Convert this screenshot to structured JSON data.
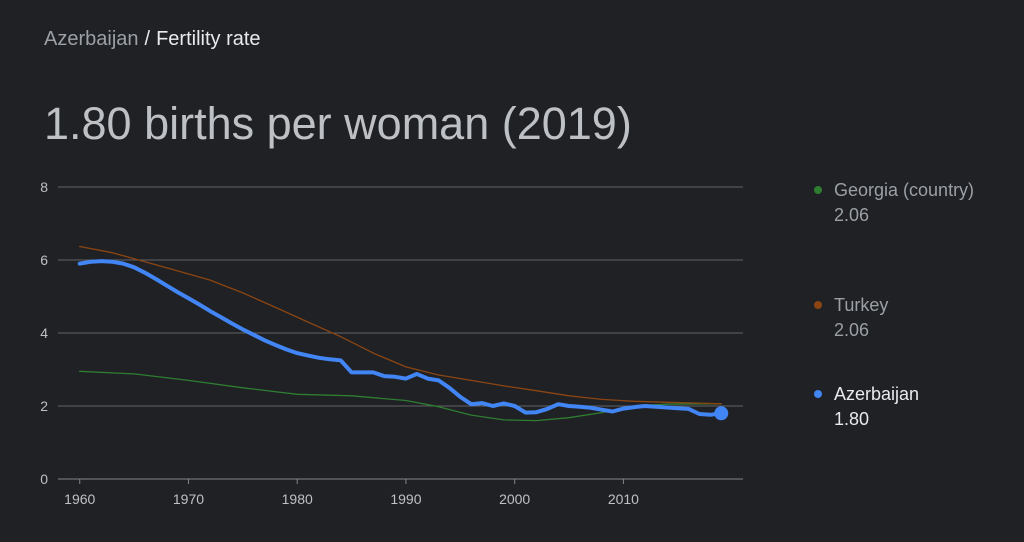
{
  "breadcrumb": {
    "parent": "Azerbaijan",
    "separator": "/",
    "current": "Fertility rate"
  },
  "headline": "1.80 births per woman (2019)",
  "colors": {
    "background": "#202124",
    "grid": "#5f6368",
    "axis": "#80868b",
    "tick_text": "#bdc1c6",
    "legend_muted_text": "#9aa0a6",
    "legend_active_text": "#e8eaed"
  },
  "chart_data": {
    "type": "line",
    "title": "",
    "xlabel": "",
    "ylabel": "",
    "xlim": [
      1958,
      2021
    ],
    "ylim": [
      0,
      8
    ],
    "x_ticks": [
      1960,
      1970,
      1980,
      1990,
      2000,
      2010
    ],
    "y_ticks": [
      0,
      2,
      4,
      6,
      8
    ],
    "grid": true,
    "legend_position": "right",
    "series": [
      {
        "name": "Georgia (country)",
        "value_label": "2.06",
        "color": "#2e7d32",
        "active": false,
        "x": [
          1960,
          1965,
          1970,
          1975,
          1980,
          1985,
          1990,
          1993,
          1996,
          1999,
          2002,
          2005,
          2008,
          2011,
          2014,
          2017,
          2019
        ],
        "y": [
          2.95,
          2.88,
          2.7,
          2.5,
          2.32,
          2.28,
          2.15,
          1.98,
          1.75,
          1.62,
          1.6,
          1.68,
          1.82,
          2.0,
          2.05,
          2.06,
          2.06
        ]
      },
      {
        "name": "Turkey",
        "value_label": "2.06",
        "color": "#8b4513",
        "active": false,
        "x": [
          1960,
          1963,
          1966,
          1969,
          1972,
          1975,
          1978,
          1981,
          1984,
          1987,
          1990,
          1993,
          1996,
          1999,
          2002,
          2005,
          2008,
          2011,
          2014,
          2017,
          2019
        ],
        "y": [
          6.37,
          6.2,
          5.95,
          5.7,
          5.45,
          5.1,
          4.7,
          4.3,
          3.9,
          3.45,
          3.07,
          2.85,
          2.7,
          2.55,
          2.42,
          2.28,
          2.18,
          2.13,
          2.1,
          2.08,
          2.06
        ]
      },
      {
        "name": "Azerbaijan",
        "value_label": "1.80",
        "color": "#4285f4",
        "active": true,
        "x": [
          1960,
          1961,
          1962,
          1963,
          1964,
          1965,
          1966,
          1967,
          1968,
          1969,
          1970,
          1971,
          1972,
          1973,
          1974,
          1975,
          1976,
          1977,
          1978,
          1979,
          1980,
          1981,
          1982,
          1983,
          1984,
          1985,
          1986,
          1987,
          1988,
          1989,
          1990,
          1991,
          1992,
          1993,
          1994,
          1995,
          1996,
          1997,
          1998,
          1999,
          2000,
          2001,
          2002,
          2003,
          2004,
          2005,
          2006,
          2007,
          2008,
          2009,
          2010,
          2011,
          2012,
          2013,
          2014,
          2015,
          2016,
          2017,
          2018,
          2019
        ],
        "y": [
          5.9,
          5.95,
          5.97,
          5.95,
          5.9,
          5.8,
          5.65,
          5.48,
          5.3,
          5.12,
          4.95,
          4.78,
          4.6,
          4.43,
          4.26,
          4.1,
          3.95,
          3.8,
          3.67,
          3.55,
          3.45,
          3.38,
          3.32,
          3.28,
          3.25,
          2.92,
          2.92,
          2.92,
          2.82,
          2.8,
          2.75,
          2.88,
          2.75,
          2.7,
          2.5,
          2.25,
          2.05,
          2.08,
          2.0,
          2.07,
          2.0,
          1.82,
          1.83,
          1.92,
          2.05,
          2.0,
          1.98,
          1.95,
          1.9,
          1.85,
          1.93,
          1.97,
          2.0,
          1.98,
          1.96,
          1.94,
          1.92,
          1.78,
          1.76,
          1.8
        ]
      }
    ]
  }
}
